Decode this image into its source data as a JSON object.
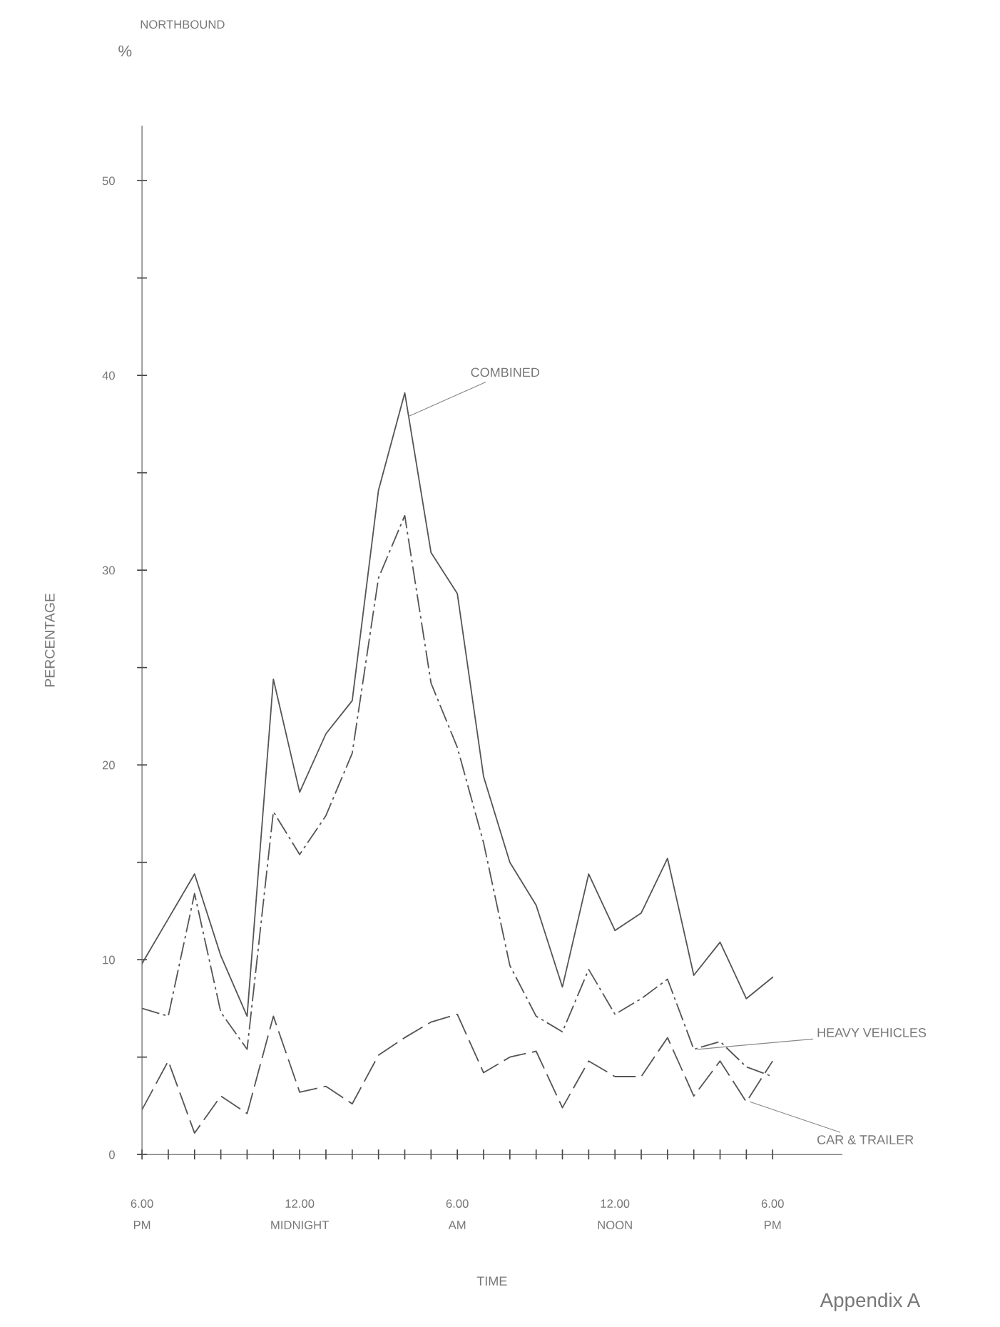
{
  "chart_data": {
    "type": "line",
    "title": "NORTHBOUND",
    "xlabel": "TIME",
    "ylabel": "PERCENTAGE",
    "annotations": [
      "%",
      "Appendix A"
    ],
    "categories": [
      "6.00\nPM",
      null,
      null,
      null,
      null,
      null,
      "12.00\nMIDNIGHT",
      null,
      null,
      null,
      null,
      null,
      "6.00\nAM",
      null,
      null,
      null,
      null,
      null,
      "12.00\nNOON",
      null,
      null,
      null,
      null,
      null,
      "6.00\nPM"
    ],
    "ylim": [
      0,
      52.8
    ],
    "yticks": [
      0,
      {
        "value": 5,
        "label": null
      },
      10,
      {
        "value": 15,
        "label": null
      },
      20,
      {
        "value": 25,
        "label": null
      },
      30,
      {
        "value": 35,
        "label": null
      },
      40,
      {
        "value": 45,
        "label": null
      },
      50
    ],
    "grid": false,
    "legend": false,
    "marker": "none",
    "series": [
      {
        "name": "COMBINED",
        "color": "#555555",
        "line_style": "solid",
        "values": [
          9.8,
          12.1,
          14.4,
          10.2,
          7.1,
          24.4,
          18.6,
          21.6,
          23.3,
          34.1,
          39.1,
          30.9,
          28.8,
          19.4,
          15.0,
          12.8,
          8.6,
          14.4,
          11.5,
          12.4,
          15.2,
          9.2,
          10.9,
          8.0,
          9.1
        ]
      },
      {
        "name": "HEAVY VEHICLES",
        "color": "#555555",
        "line_style": "dashed",
        "values": [
          7.5,
          7.1,
          13.4,
          7.3,
          5.4,
          17.6,
          15.4,
          17.4,
          20.6,
          29.6,
          32.8,
          24.2,
          20.9,
          16.0,
          9.7,
          7.1,
          6.3,
          9.5,
          7.2,
          8.0,
          9.0,
          5.4,
          5.8,
          4.5,
          4.0
        ]
      },
      {
        "name": "CAR & TRAILER",
        "color": "#555555",
        "line_style": "dashed",
        "values": [
          2.3,
          4.8,
          1.1,
          3.0,
          2.1,
          7.1,
          3.2,
          3.5,
          2.6,
          5.1,
          6.0,
          6.8,
          7.2,
          4.2,
          5.0,
          5.3,
          2.4,
          4.8,
          4.0,
          4.0,
          6.0,
          3.0,
          4.8,
          2.7,
          4.8
        ]
      }
    ]
  }
}
